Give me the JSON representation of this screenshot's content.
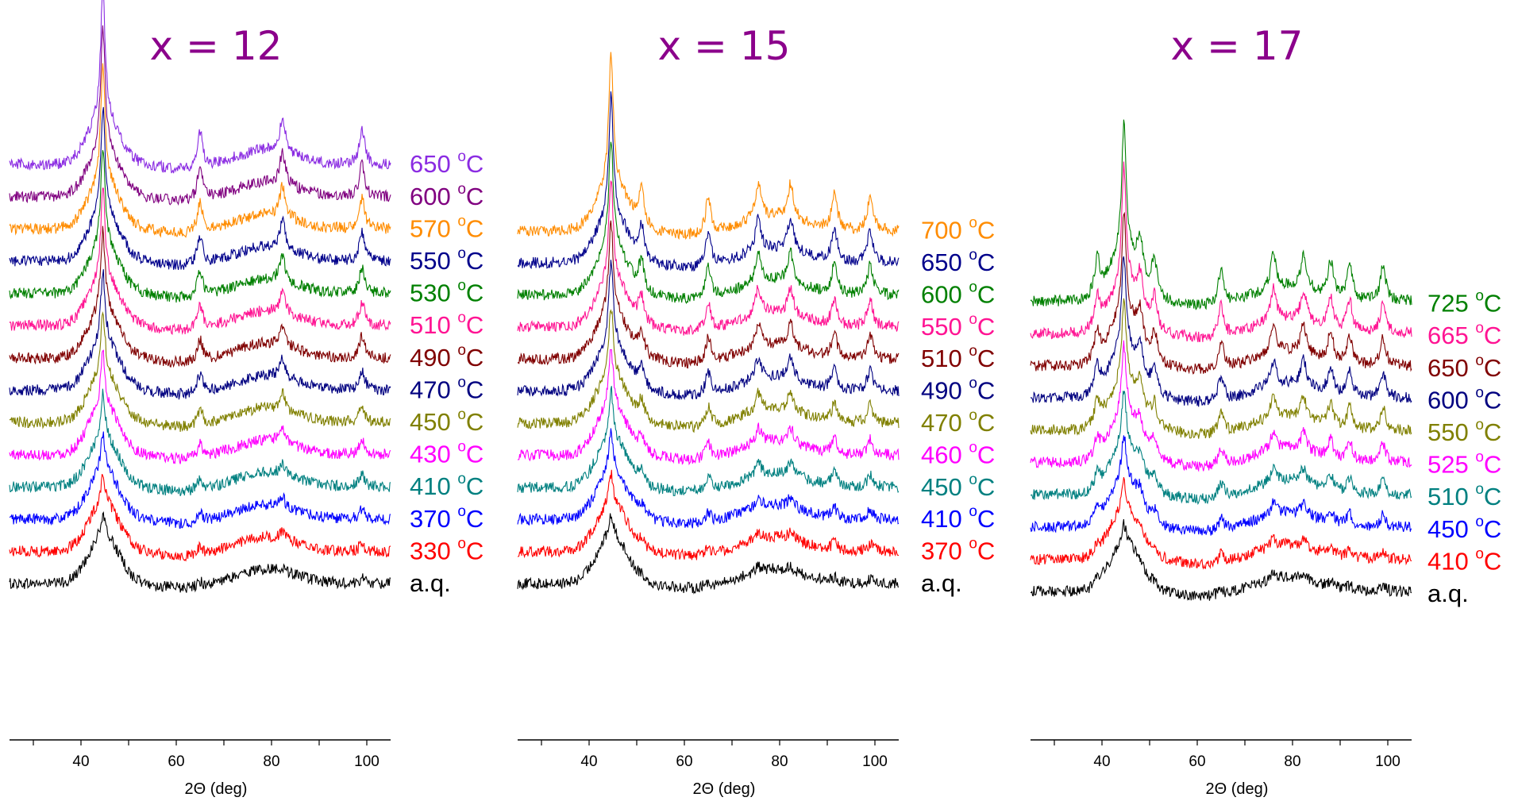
{
  "chart_data": [
    {
      "type": "line",
      "title": "x = 12",
      "xlabel": "2Θ (deg)",
      "ylabel": "",
      "xlim": [
        25,
        105
      ],
      "x_ticks": [
        40,
        60,
        80,
        100
      ],
      "title_color": "#8B008B",
      "series": [
        {
          "name": "a.q.",
          "color": "#000000",
          "offset": 0
        },
        {
          "name": "330 °C",
          "color": "#ff0000",
          "offset": 1
        },
        {
          "name": "370 °C",
          "color": "#0000ff",
          "offset": 2
        },
        {
          "name": "410 °C",
          "color": "#008080",
          "offset": 3
        },
        {
          "name": "430 °C",
          "color": "#ff00ff",
          "offset": 4
        },
        {
          "name": "450 °C",
          "color": "#808000",
          "offset": 5
        },
        {
          "name": "470 °C",
          "color": "#000080",
          "offset": 6
        },
        {
          "name": "490 °C",
          "color": "#800000",
          "offset": 7
        },
        {
          "name": "510 °C",
          "color": "#ff1493",
          "offset": 8
        },
        {
          "name": "530 °C",
          "color": "#008000",
          "offset": 9
        },
        {
          "name": "550 °C",
          "color": "#00008b",
          "offset": 10
        },
        {
          "name": "570 °C",
          "color": "#ff8c00",
          "offset": 11
        },
        {
          "name": "600 °C",
          "color": "#800080",
          "offset": 12
        },
        {
          "name": "650 °C",
          "color": "#8a2be2",
          "offset": 13
        }
      ],
      "peaks_deg": [
        44.6,
        65.0,
        82.3,
        99.0
      ]
    },
    {
      "type": "line",
      "title": "x = 15",
      "xlabel": "2Θ (deg)",
      "ylabel": "",
      "xlim": [
        25,
        105
      ],
      "x_ticks": [
        40,
        60,
        80,
        100
      ],
      "title_color": "#8B008B",
      "series": [
        {
          "name": "a.q.",
          "color": "#000000",
          "offset": 0
        },
        {
          "name": "370 °C",
          "color": "#ff0000",
          "offset": 1
        },
        {
          "name": "410 °C",
          "color": "#0000ff",
          "offset": 2
        },
        {
          "name": "450 °C",
          "color": "#008080",
          "offset": 3
        },
        {
          "name": "460 °C",
          "color": "#ff00ff",
          "offset": 4
        },
        {
          "name": "470 °C",
          "color": "#808000",
          "offset": 5
        },
        {
          "name": "490 °C",
          "color": "#000080",
          "offset": 6
        },
        {
          "name": "510 °C",
          "color": "#800000",
          "offset": 7
        },
        {
          "name": "550 °C",
          "color": "#ff1493",
          "offset": 8
        },
        {
          "name": "600 °C",
          "color": "#008000",
          "offset": 9
        },
        {
          "name": "650 °C",
          "color": "#00008b",
          "offset": 10
        },
        {
          "name": "700 °C",
          "color": "#ff8c00",
          "offset": 11
        }
      ],
      "peaks_deg": [
        44.6,
        51.0,
        65.0,
        75.5,
        82.3,
        91.5,
        99.0
      ]
    },
    {
      "type": "line",
      "title": "x = 17",
      "xlabel": "2Θ (deg)",
      "ylabel": "",
      "xlim": [
        25,
        105
      ],
      "x_ticks": [
        40,
        60,
        80,
        100
      ],
      "title_color": "#8B008B",
      "series": [
        {
          "name": "a.q.",
          "color": "#000000",
          "offset": 0
        },
        {
          "name": "410 °C",
          "color": "#ff0000",
          "offset": 1
        },
        {
          "name": "450 °C",
          "color": "#0000ff",
          "offset": 2
        },
        {
          "name": "510 °C",
          "color": "#008080",
          "offset": 3
        },
        {
          "name": "525 °C",
          "color": "#ff00ff",
          "offset": 4
        },
        {
          "name": "550 °C",
          "color": "#808000",
          "offset": 5
        },
        {
          "name": "600 °C",
          "color": "#000080",
          "offset": 6
        },
        {
          "name": "650 °C",
          "color": "#800000",
          "offset": 7
        },
        {
          "name": "665 °C",
          "color": "#ff1493",
          "offset": 8
        },
        {
          "name": "725 °C",
          "color": "#008000",
          "offset": 9
        }
      ],
      "peaks_deg": [
        39.0,
        44.6,
        48.0,
        51.0,
        65.0,
        76.0,
        82.3,
        88.0,
        92.0,
        99.0
      ]
    }
  ]
}
